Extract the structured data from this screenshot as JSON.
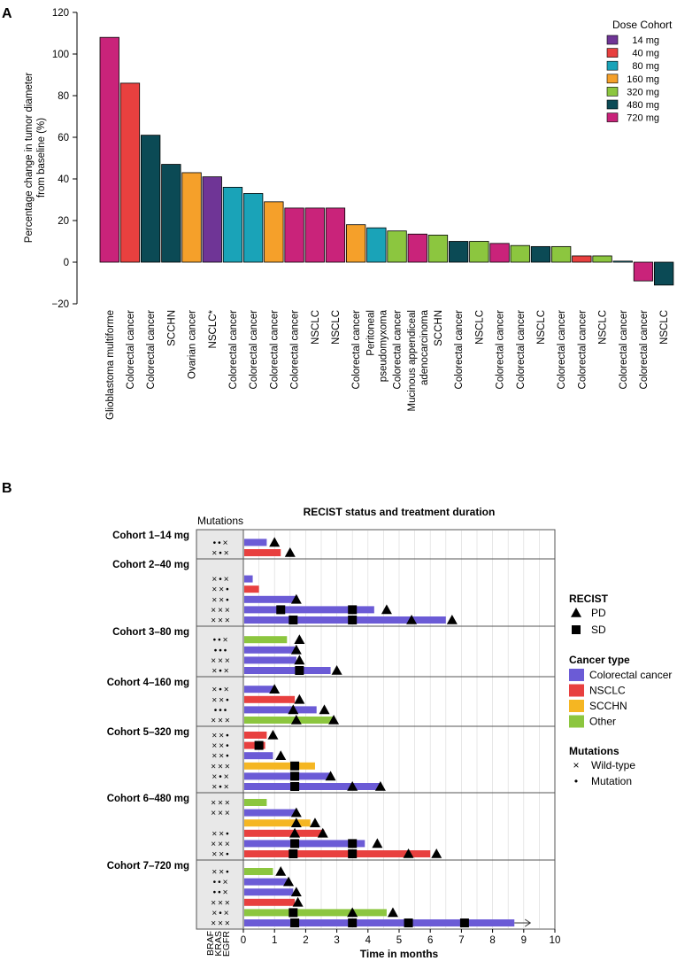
{
  "chart_data": [
    {
      "panel_label": "A",
      "type": "bar",
      "ylabel": "Percentage change in tumor diameter",
      "ylabel2": "from baseline (%)",
      "ylim": [
        -20,
        120
      ],
      "yticks": [
        -20,
        0,
        20,
        40,
        60,
        80,
        100,
        120
      ],
      "legend_title": "Dose Cohort",
      "legend": [
        {
          "label": "14 mg",
          "color": "#6f3596"
        },
        {
          "label": "40 mg",
          "color": "#e8403f"
        },
        {
          "label": "80 mg",
          "color": "#1aa3b8"
        },
        {
          "label": "160 mg",
          "color": "#f5a02a"
        },
        {
          "label": "320 mg",
          "color": "#8cc63f"
        },
        {
          "label": "480 mg",
          "color": "#0b4a55"
        },
        {
          "label": "720 mg",
          "color": "#c9237a"
        }
      ],
      "bars": [
        {
          "category": "Glioblastoma multiforme",
          "value": 108,
          "cohort": 6
        },
        {
          "category": "Colorectal cancer",
          "value": 86,
          "cohort": 1
        },
        {
          "category": "Colorectal cancer",
          "value": 61,
          "cohort": 5
        },
        {
          "category": "SCCHN",
          "value": 47,
          "cohort": 5
        },
        {
          "category": "Ovarian cancer",
          "value": 43,
          "cohort": 3
        },
        {
          "category": "NSCLC*",
          "value": 41,
          "cohort": 0
        },
        {
          "category": "Colorectal cancer",
          "value": 36,
          "cohort": 2
        },
        {
          "category": "Colorectal cancer",
          "value": 33,
          "cohort": 2
        },
        {
          "category": "Colorectal cancer",
          "value": 29,
          "cohort": 3
        },
        {
          "category": "Colorectal cancer",
          "value": 26,
          "cohort": 6
        },
        {
          "category": "NSCLC",
          "value": 26,
          "cohort": 6
        },
        {
          "category": "NSCLC",
          "value": 26,
          "cohort": 6
        },
        {
          "category": "Colorectal cancer",
          "value": 18,
          "cohort": 3
        },
        {
          "category": "Peritoneal pseudomyxoma",
          "value": 16.5,
          "cohort": 2
        },
        {
          "category": "Colorectal cancer",
          "value": 15,
          "cohort": 4
        },
        {
          "category": "Mucinous appendiceal adenocarcinoma",
          "value": 13.5,
          "cohort": 6
        },
        {
          "category": "SCCHN",
          "value": 13,
          "cohort": 4
        },
        {
          "category": "Colorectal cancer",
          "value": 10,
          "cohort": 5
        },
        {
          "category": "NSCLC",
          "value": 10,
          "cohort": 4
        },
        {
          "category": "Colorectal cancer",
          "value": 9,
          "cohort": 6
        },
        {
          "category": "Colorectal cancer",
          "value": 8,
          "cohort": 4
        },
        {
          "category": "NSCLC",
          "value": 7.5,
          "cohort": 5
        },
        {
          "category": "Colorectal cancer",
          "value": 7.5,
          "cohort": 4
        },
        {
          "category": "Colorectal cancer",
          "value": 3,
          "cohort": 1
        },
        {
          "category": "NSCLC",
          "value": 3,
          "cohort": 4
        },
        {
          "category": "Colorectal cancer",
          "value": 0.5,
          "cohort": 2
        },
        {
          "category": "Colorectal cancer",
          "value": -9,
          "cohort": 6
        },
        {
          "category": "NSCLC",
          "value": -11,
          "cohort": 5
        }
      ]
    },
    {
      "panel_label": "B",
      "type": "bar",
      "title": "RECIST status and treatment duration",
      "xlabel": "Time in months",
      "xlim": [
        0,
        10
      ],
      "xticks": [
        0,
        1,
        2,
        3,
        4,
        5,
        6,
        7,
        8,
        9,
        10
      ],
      "mutations_header": "Mutations",
      "gene_labels": [
        "BRAF",
        "KRAS",
        "EGFR"
      ],
      "legend": {
        "recist_title": "RECIST",
        "recist": [
          {
            "label": "PD",
            "symbol": "triangle"
          },
          {
            "label": "SD",
            "symbol": "square"
          }
        ],
        "cancer_title": "Cancer type",
        "cancer": [
          {
            "label": "Colorectal cancer",
            "color": "#6b5bd6"
          },
          {
            "label": "NSCLC",
            "color": "#e8403f"
          },
          {
            "label": "SCCHN",
            "color": "#f5b622"
          },
          {
            "label": "Other",
            "color": "#8cc63f"
          }
        ],
        "mutations_title": "Mutations",
        "mutations": [
          {
            "label": "Wild-type",
            "symbol": "×"
          },
          {
            "label": "Mutation",
            "symbol": "•"
          }
        ]
      },
      "cohorts": [
        {
          "label": "Cohort 1–14 mg",
          "patients": [
            {
              "mut": "• • ×",
              "type": 0,
              "end": 0.75,
              "sd": [],
              "pd": [
                1.0
              ]
            },
            {
              "mut": "× • ×",
              "type": 1,
              "end": 1.2,
              "sd": [],
              "pd": [
                1.5
              ]
            }
          ]
        },
        {
          "label": "Cohort 2–40 mg",
          "patients": [
            {
              "mut": "× • ×",
              "type": 0,
              "end": 0.3,
              "sd": [],
              "pd": []
            },
            {
              "mut": "× × •",
              "type": 1,
              "end": 0.5,
              "sd": [],
              "pd": []
            },
            {
              "mut": "× × •",
              "type": 0,
              "end": 1.75,
              "sd": [],
              "pd": [
                1.7
              ]
            },
            {
              "mut": "× × ×",
              "type": 0,
              "end": 4.2,
              "sd": [
                1.2,
                3.5
              ],
              "pd": [
                4.6
              ]
            },
            {
              "mut": "× × ×",
              "type": 0,
              "end": 6.5,
              "sd": [
                1.6,
                3.5
              ],
              "pd": [
                5.4,
                6.7
              ]
            }
          ]
        },
        {
          "label": "Cohort 3–80 mg",
          "patients": [
            {
              "mut": "• • ×",
              "type": 3,
              "end": 1.4,
              "sd": [],
              "pd": [
                1.8
              ]
            },
            {
              "mut": "• • •",
              "type": 0,
              "end": 1.65,
              "sd": [],
              "pd": [
                1.7
              ]
            },
            {
              "mut": "× × ×",
              "type": 0,
              "end": 1.7,
              "sd": [],
              "pd": [
                1.8
              ]
            },
            {
              "mut": "× • ×",
              "type": 0,
              "end": 2.8,
              "sd": [
                1.8
              ],
              "pd": [
                3.0
              ]
            }
          ]
        },
        {
          "label": "Cohort 4–160 mg",
          "patients": [
            {
              "mut": "× • ×",
              "type": 0,
              "end": 1.0,
              "sd": [],
              "pd": [
                1.0
              ]
            },
            {
              "mut": "× × •",
              "type": 1,
              "end": 1.65,
              "sd": [],
              "pd": [
                1.8
              ]
            },
            {
              "mut": "• • •",
              "type": 0,
              "end": 2.35,
              "sd": [],
              "pd": [
                1.6,
                2.6
              ]
            },
            {
              "mut": "× × ×",
              "type": 3,
              "end": 2.9,
              "sd": [],
              "pd": [
                1.7,
                2.9
              ]
            }
          ]
        },
        {
          "label": "Cohort 5–320 mg",
          "patients": [
            {
              "mut": "× × •",
              "type": 1,
              "end": 0.75,
              "sd": [],
              "pd": [
                0.95
              ]
            },
            {
              "mut": "× × •",
              "type": 1,
              "end": 0.7,
              "sd": [
                0.5
              ],
              "pd": []
            },
            {
              "mut": "× × •",
              "type": 0,
              "end": 0.95,
              "sd": [],
              "pd": [
                1.2
              ]
            },
            {
              "mut": "× × ×",
              "type": 2,
              "end": 2.3,
              "sd": [
                1.65
              ],
              "pd": []
            },
            {
              "mut": "× • ×",
              "type": 0,
              "end": 2.8,
              "sd": [
                1.65
              ],
              "pd": [
                2.8
              ]
            },
            {
              "mut": "× • ×",
              "type": 0,
              "end": 4.4,
              "sd": [
                1.65
              ],
              "pd": [
                3.5,
                4.4
              ]
            }
          ]
        },
        {
          "label": "Cohort 6–480 mg",
          "patients": [
            {
              "mut": "× × ×",
              "type": 3,
              "end": 0.75,
              "sd": [],
              "pd": []
            },
            {
              "mut": "× × ×",
              "type": 0,
              "end": 1.7,
              "sd": [],
              "pd": [
                1.7
              ]
            },
            {
              "mut": "",
              "type": 2,
              "end": 2.15,
              "sd": [],
              "pd": [
                1.7,
                2.3
              ]
            },
            {
              "mut": "× × •",
              "type": 1,
              "end": 2.6,
              "sd": [],
              "pd": [
                1.65,
                2.55
              ]
            },
            {
              "mut": "× × ×",
              "type": 0,
              "end": 3.9,
              "sd": [
                1.65,
                3.5
              ],
              "pd": [
                4.3
              ]
            },
            {
              "mut": "× × •",
              "type": 1,
              "end": 6.0,
              "sd": [
                1.6,
                3.5
              ],
              "pd": [
                5.3,
                6.2
              ]
            }
          ]
        },
        {
          "label": "Cohort 7–720 mg",
          "patients": [
            {
              "mut": "× × •",
              "type": 3,
              "end": 0.95,
              "sd": [],
              "pd": [
                1.2
              ]
            },
            {
              "mut": "• • ×",
              "type": 0,
              "end": 1.4,
              "sd": [],
              "pd": [
                1.45
              ]
            },
            {
              "mut": "• • ×",
              "type": 0,
              "end": 1.6,
              "sd": [],
              "pd": [
                1.7
              ]
            },
            {
              "mut": "× × ×",
              "type": 1,
              "end": 1.65,
              "sd": [],
              "pd": [
                1.75
              ]
            },
            {
              "mut": "× • ×",
              "type": 3,
              "end": 4.6,
              "sd": [
                1.6
              ],
              "pd": [
                3.5,
                4.8
              ]
            },
            {
              "mut": "× × ×",
              "type": 0,
              "end": 8.7,
              "sd": [
                1.65,
                3.5,
                5.3,
                7.1
              ],
              "pd": [],
              "ongoing": true
            }
          ]
        }
      ]
    }
  ]
}
